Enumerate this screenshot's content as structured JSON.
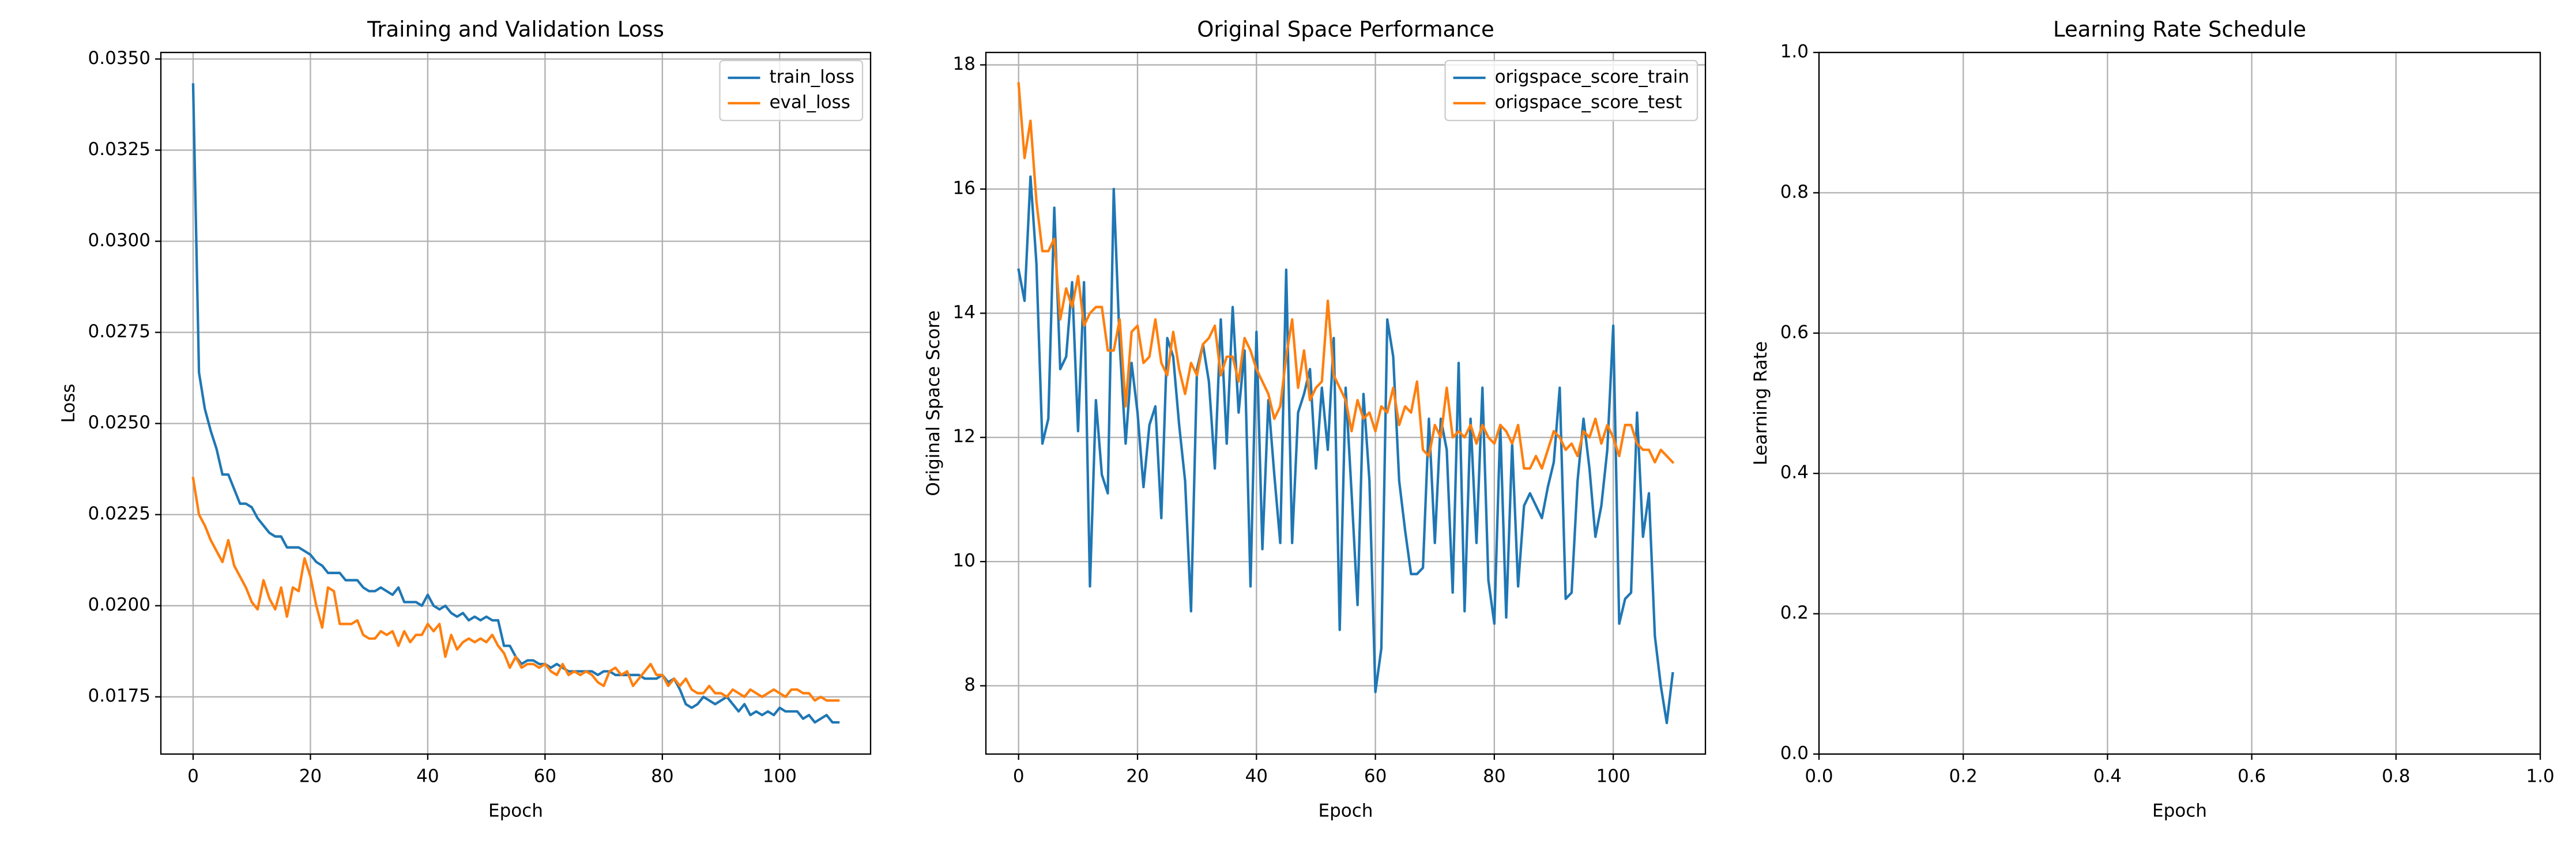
{
  "chart_data": [
    {
      "type": "line",
      "title": "Training and Validation Loss",
      "xlabel": "Epoch",
      "ylabel": "Loss",
      "x": [
        0,
        1,
        2,
        3,
        4,
        5,
        6,
        7,
        8,
        9,
        10,
        11,
        12,
        13,
        14,
        15,
        16,
        17,
        18,
        19,
        20,
        21,
        22,
        23,
        24,
        25,
        26,
        27,
        28,
        29,
        30,
        31,
        32,
        33,
        34,
        35,
        36,
        37,
        38,
        39,
        40,
        41,
        42,
        43,
        44,
        45,
        46,
        47,
        48,
        49,
        50,
        51,
        52,
        53,
        54,
        55,
        56,
        57,
        58,
        59,
        60,
        61,
        62,
        63,
        64,
        65,
        66,
        67,
        68,
        69,
        70,
        71,
        72,
        73,
        74,
        75,
        76,
        77,
        78,
        79,
        80,
        81,
        82,
        83,
        84,
        85,
        86,
        87,
        88,
        89,
        90,
        91,
        92,
        93,
        94,
        95,
        96,
        97,
        98,
        99,
        100,
        101,
        102,
        103,
        104,
        105,
        106,
        107,
        108,
        109,
        110
      ],
      "series": [
        {
          "name": "train_loss",
          "color": "#1f77b4",
          "values": [
            0.0343,
            0.0264,
            0.0254,
            0.0248,
            0.0243,
            0.0236,
            0.0236,
            0.0232,
            0.0228,
            0.0228,
            0.0227,
            0.0224,
            0.0222,
            0.022,
            0.0219,
            0.0219,
            0.0216,
            0.0216,
            0.0216,
            0.0215,
            0.0214,
            0.0212,
            0.0211,
            0.0209,
            0.0209,
            0.0209,
            0.0207,
            0.0207,
            0.0207,
            0.0205,
            0.0204,
            0.0204,
            0.0205,
            0.0204,
            0.0203,
            0.0205,
            0.0201,
            0.0201,
            0.0201,
            0.02,
            0.0203,
            0.02,
            0.0199,
            0.02,
            0.0198,
            0.0197,
            0.0198,
            0.0196,
            0.0197,
            0.0196,
            0.0197,
            0.0196,
            0.0196,
            0.0189,
            0.0189,
            0.0186,
            0.0184,
            0.0185,
            0.0185,
            0.0184,
            0.0184,
            0.0183,
            0.0184,
            0.0183,
            0.0182,
            0.0182,
            0.0182,
            0.0182,
            0.0182,
            0.0181,
            0.0182,
            0.0182,
            0.0181,
            0.0181,
            0.0181,
            0.0181,
            0.0181,
            0.018,
            0.018,
            0.018,
            0.0181,
            0.0179,
            0.018,
            0.0177,
            0.0173,
            0.0172,
            0.0173,
            0.0175,
            0.0174,
            0.0173,
            0.0174,
            0.0175,
            0.0173,
            0.0171,
            0.0173,
            0.017,
            0.0171,
            0.017,
            0.0171,
            0.017,
            0.0172,
            0.0171,
            0.0171,
            0.0171,
            0.0169,
            0.017,
            0.0168,
            0.0169,
            0.017,
            0.0168,
            0.0168
          ]
        },
        {
          "name": "eval_loss",
          "color": "#ff7f0e",
          "values": [
            0.0235,
            0.0225,
            0.0222,
            0.0218,
            0.0215,
            0.0212,
            0.0218,
            0.0211,
            0.0208,
            0.0205,
            0.0201,
            0.0199,
            0.0207,
            0.0202,
            0.0199,
            0.0205,
            0.0197,
            0.0205,
            0.0204,
            0.0213,
            0.0208,
            0.02,
            0.0194,
            0.0205,
            0.0204,
            0.0195,
            0.0195,
            0.0195,
            0.0196,
            0.0192,
            0.0191,
            0.0191,
            0.0193,
            0.0192,
            0.0193,
            0.0189,
            0.0193,
            0.019,
            0.0192,
            0.0192,
            0.0195,
            0.0193,
            0.0195,
            0.0186,
            0.0192,
            0.0188,
            0.019,
            0.0191,
            0.019,
            0.0191,
            0.019,
            0.0192,
            0.0189,
            0.0187,
            0.0183,
            0.0186,
            0.0183,
            0.0184,
            0.0184,
            0.0183,
            0.0184,
            0.0182,
            0.0181,
            0.0184,
            0.0181,
            0.0182,
            0.0181,
            0.0182,
            0.0181,
            0.0179,
            0.0178,
            0.0182,
            0.0183,
            0.0181,
            0.0182,
            0.0178,
            0.018,
            0.0182,
            0.0184,
            0.0181,
            0.0181,
            0.0178,
            0.018,
            0.0178,
            0.018,
            0.0177,
            0.0176,
            0.0176,
            0.0178,
            0.0176,
            0.0176,
            0.0175,
            0.0177,
            0.0176,
            0.0175,
            0.0177,
            0.0176,
            0.0175,
            0.0176,
            0.0177,
            0.0176,
            0.0175,
            0.0177,
            0.0177,
            0.0176,
            0.0176,
            0.0174,
            0.0175,
            0.0174,
            0.0174,
            0.0174
          ]
        }
      ],
      "xlim": [
        -5.5,
        115.5
      ],
      "xticks": [
        0,
        20,
        40,
        60,
        80,
        100
      ],
      "ylim": [
        0.01593,
        0.03518
      ],
      "yticks": [
        0.0175,
        {
          "value": 0.02,
          "label": "0.0200"
        },
        0.0225,
        {
          "value": 0.025,
          "label": "0.0250"
        },
        0.0275,
        {
          "value": 0.03,
          "label": "0.0300"
        },
        0.0325,
        {
          "value": 0.035,
          "label": "0.0350"
        }
      ],
      "grid": true,
      "legend": "upper right"
    },
    {
      "type": "line",
      "title": "Original Space Performance",
      "xlabel": "Epoch",
      "ylabel": "Original Space Score",
      "x": [
        0,
        1,
        2,
        3,
        4,
        5,
        6,
        7,
        8,
        9,
        10,
        11,
        12,
        13,
        14,
        15,
        16,
        17,
        18,
        19,
        20,
        21,
        22,
        23,
        24,
        25,
        26,
        27,
        28,
        29,
        30,
        31,
        32,
        33,
        34,
        35,
        36,
        37,
        38,
        39,
        40,
        41,
        42,
        43,
        44,
        45,
        46,
        47,
        48,
        49,
        50,
        51,
        52,
        53,
        54,
        55,
        56,
        57,
        58,
        59,
        60,
        61,
        62,
        63,
        64,
        65,
        66,
        67,
        68,
        69,
        70,
        71,
        72,
        73,
        74,
        75,
        76,
        77,
        78,
        79,
        80,
        81,
        82,
        83,
        84,
        85,
        86,
        87,
        88,
        89,
        90,
        91,
        92,
        93,
        94,
        95,
        96,
        97,
        98,
        99,
        100,
        101,
        102,
        103,
        104,
        105,
        106,
        107,
        108,
        109,
        110
      ],
      "series": [
        {
          "name": "origspace_score_train",
          "color": "#1f77b4",
          "values": [
            14.7,
            14.2,
            16.2,
            14.8,
            11.9,
            12.3,
            15.7,
            13.1,
            13.3,
            14.5,
            12.1,
            14.5,
            9.6,
            12.6,
            11.4,
            11.1,
            16.0,
            13.5,
            11.9,
            13.2,
            12.4,
            11.2,
            12.2,
            12.5,
            10.7,
            13.6,
            13.3,
            12.2,
            11.3,
            9.2,
            13.1,
            13.5,
            12.9,
            11.5,
            13.9,
            11.9,
            14.1,
            12.4,
            13.4,
            9.6,
            13.7,
            10.2,
            12.6,
            11.4,
            10.3,
            14.7,
            10.3,
            12.4,
            12.7,
            13.1,
            11.5,
            12.8,
            11.8,
            13.6,
            8.9,
            12.8,
            11.1,
            9.3,
            12.7,
            11.3,
            7.9,
            8.6,
            13.9,
            13.3,
            11.3,
            10.5,
            9.8,
            9.8,
            9.9,
            12.3,
            10.3,
            12.3,
            11.8,
            9.5,
            13.2,
            9.2,
            12.3,
            10.3,
            12.8,
            9.7,
            9.0,
            12.2,
            9.1,
            11.9,
            9.6,
            10.9,
            11.1,
            10.9,
            10.7,
            11.2,
            11.6,
            12.8,
            9.4,
            9.5,
            11.3,
            12.3,
            11.5,
            10.4,
            10.9,
            11.8,
            13.8,
            9.0,
            9.4,
            9.5,
            12.4,
            10.4,
            11.1,
            8.8,
            8.0,
            7.4,
            8.2
          ]
        },
        {
          "name": "origspace_score_test",
          "color": "#ff7f0e",
          "values": [
            17.7,
            16.5,
            17.1,
            15.8,
            15.0,
            15.0,
            15.2,
            13.9,
            14.4,
            14.1,
            14.6,
            13.8,
            14.0,
            14.1,
            14.1,
            13.4,
            13.4,
            13.9,
            12.5,
            13.7,
            13.8,
            13.2,
            13.3,
            13.9,
            13.2,
            13.0,
            13.7,
            13.1,
            12.7,
            13.2,
            13.0,
            13.5,
            13.6,
            13.8,
            13.0,
            13.3,
            13.3,
            12.9,
            13.6,
            13.4,
            13.1,
            12.9,
            12.7,
            12.3,
            12.5,
            13.3,
            13.9,
            12.8,
            13.4,
            12.6,
            12.8,
            12.9,
            14.2,
            13.0,
            12.8,
            12.6,
            12.1,
            12.6,
            12.3,
            12.4,
            12.1,
            12.5,
            12.4,
            12.8,
            12.2,
            12.5,
            12.4,
            12.9,
            11.8,
            11.7,
            12.2,
            12.0,
            12.8,
            12.0,
            12.1,
            12.0,
            12.2,
            11.9,
            12.2,
            12.0,
            11.9,
            12.2,
            12.1,
            11.9,
            12.2,
            11.5,
            11.5,
            11.7,
            11.5,
            11.8,
            12.1,
            12.0,
            11.8,
            11.9,
            11.7,
            12.1,
            12.0,
            12.3,
            11.9,
            12.2,
            12.0,
            11.7,
            12.2,
            12.2,
            11.9,
            11.8,
            11.8,
            11.6,
            11.8,
            11.7,
            11.6
          ]
        }
      ],
      "xlim": [
        -5.5,
        115.5
      ],
      "xticks": [
        0,
        20,
        40,
        60,
        80,
        100
      ],
      "ylim": [
        6.9,
        18.2
      ],
      "yticks": [
        8,
        10,
        12,
        14,
        16,
        18
      ],
      "grid": true,
      "legend": "upper right"
    },
    {
      "type": "line",
      "title": "Learning Rate Schedule",
      "xlabel": "Epoch",
      "ylabel": "Learning Rate",
      "x": [],
      "series": [],
      "xlim": [
        0,
        1
      ],
      "xticks": [
        {
          "value": 0,
          "label": "0.0"
        },
        {
          "value": 0.2,
          "label": "0.2"
        },
        {
          "value": 0.4,
          "label": "0.4"
        },
        {
          "value": 0.6,
          "label": "0.6"
        },
        {
          "value": 0.8,
          "label": "0.8"
        },
        {
          "value": 1,
          "label": "1.0"
        }
      ],
      "ylim": [
        0,
        1
      ],
      "yticks": [
        {
          "value": 0,
          "label": "0.0"
        },
        {
          "value": 0.2,
          "label": "0.2"
        },
        {
          "value": 0.4,
          "label": "0.4"
        },
        {
          "value": 0.6,
          "label": "0.6"
        },
        {
          "value": 0.8,
          "label": "0.8"
        },
        {
          "value": 1,
          "label": "1.0"
        }
      ],
      "grid": true
    }
  ]
}
